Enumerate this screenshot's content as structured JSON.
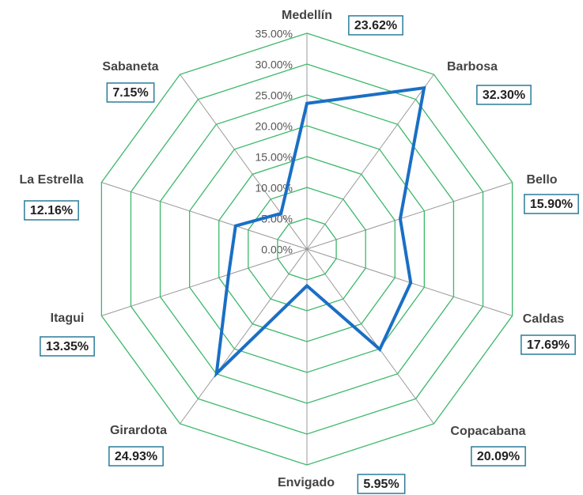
{
  "chart_data": {
    "type": "radar",
    "categories": [
      "Medellín",
      "Barbosa",
      "Bello",
      "Caldas",
      "Copacabana",
      "Envigado",
      "Girardota",
      "Itagui",
      "La Estrella",
      "Sabaneta"
    ],
    "values": [
      23.62,
      32.3,
      15.9,
      17.69,
      20.09,
      5.95,
      24.93,
      13.35,
      12.16,
      7.15
    ],
    "value_labels": [
      "23.62%",
      "32.30%",
      "15.90%",
      "17.69%",
      "20.09%",
      "5.95%",
      "24.93%",
      "13.35%",
      "12.16%",
      "7.15%"
    ],
    "color": "#1a6fc4",
    "grid_color": "#3cb86a",
    "rlim": [
      0,
      35
    ],
    "rticks": [
      {
        "value": 0,
        "label": "0.00%"
      },
      {
        "value": 5,
        "label": "5.00%"
      },
      {
        "value": 10,
        "label": "10.00%"
      },
      {
        "value": 15,
        "label": "15.00%"
      },
      {
        "value": 20,
        "label": "20.00%"
      },
      {
        "value": 25,
        "label": "25.00%"
      },
      {
        "value": 30,
        "label": "30.00%"
      },
      {
        "value": 35,
        "label": "35.00%"
      }
    ]
  }
}
